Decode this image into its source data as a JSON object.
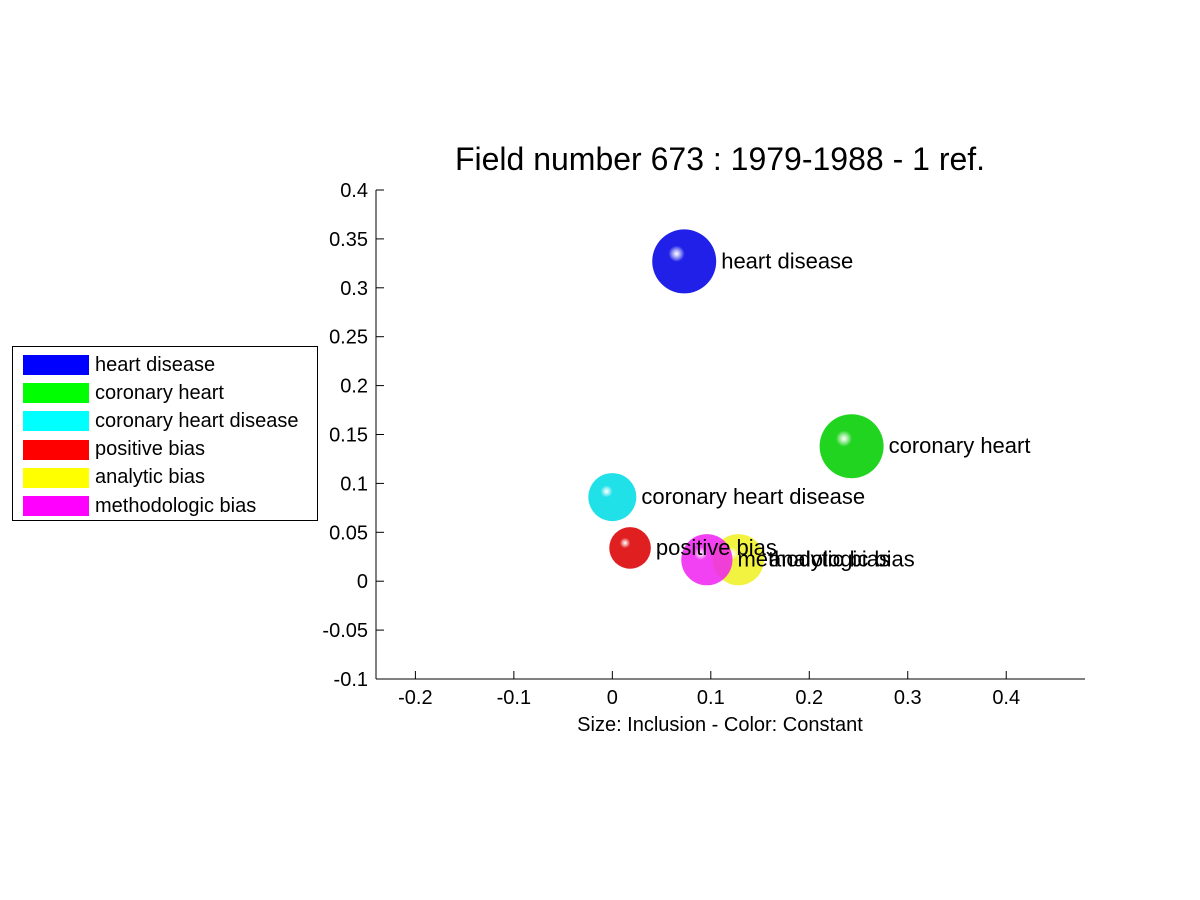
{
  "chart_data": {
    "type": "scatter",
    "title": "Field number 673 : 1979-1988  - 1 ref.",
    "xlabel": "Size: Inclusion - Color: Constant",
    "ylabel": "",
    "xlim": [
      -0.24,
      0.48
    ],
    "ylim": [
      -0.1,
      0.4
    ],
    "xticks": [
      -0.2,
      -0.1,
      0,
      0.1,
      0.2,
      0.3,
      0.4
    ],
    "xtick_labels": [
      "-0.2",
      "-0.1",
      "0",
      "0.1",
      "0.2",
      "0.3",
      "0.4"
    ],
    "yticks": [
      -0.1,
      -0.05,
      0,
      0.05,
      0.1,
      0.15,
      0.2,
      0.25,
      0.3,
      0.35,
      0.4
    ],
    "ytick_labels": [
      "-0.1",
      "-0.05",
      "0",
      "0.05",
      "0.1",
      "0.15",
      "0.2",
      "0.25",
      "0.3",
      "0.35",
      "0.4"
    ],
    "grid": false,
    "legend_position": "outside-left",
    "points": [
      {
        "label": "heart disease",
        "x": 0.073,
        "y": 0.327,
        "size": 1.0,
        "color": "#2020e8",
        "opacity": 1.0
      },
      {
        "label": "coronary heart",
        "x": 0.243,
        "y": 0.138,
        "size": 1.0,
        "color": "#20d420",
        "opacity": 1.0
      },
      {
        "label": "coronary heart disease",
        "x": 0.0,
        "y": 0.086,
        "size": 0.75,
        "color": "#20e0e8",
        "opacity": 1.0
      },
      {
        "label": "positive bias",
        "x": 0.018,
        "y": 0.034,
        "size": 0.65,
        "color": "#e02020",
        "opacity": 1.0
      },
      {
        "label": "analytic bias",
        "x": 0.128,
        "y": 0.022,
        "size": 0.8,
        "color": "#f0f020",
        "opacity": 0.85
      },
      {
        "label": "methodologic bias",
        "x": 0.096,
        "y": 0.022,
        "size": 0.8,
        "color": "#f020f0",
        "opacity": 0.85
      }
    ]
  },
  "legend": {
    "items": [
      {
        "label": "heart disease",
        "color": "#0000ff"
      },
      {
        "label": "coronary heart",
        "color": "#00ff00"
      },
      {
        "label": "coronary heart disease",
        "color": "#00ffff"
      },
      {
        "label": "positive bias",
        "color": "#ff0000"
      },
      {
        "label": "analytic bias",
        "color": "#ffff00"
      },
      {
        "label": "methodologic bias",
        "color": "#ff00ff"
      }
    ]
  }
}
